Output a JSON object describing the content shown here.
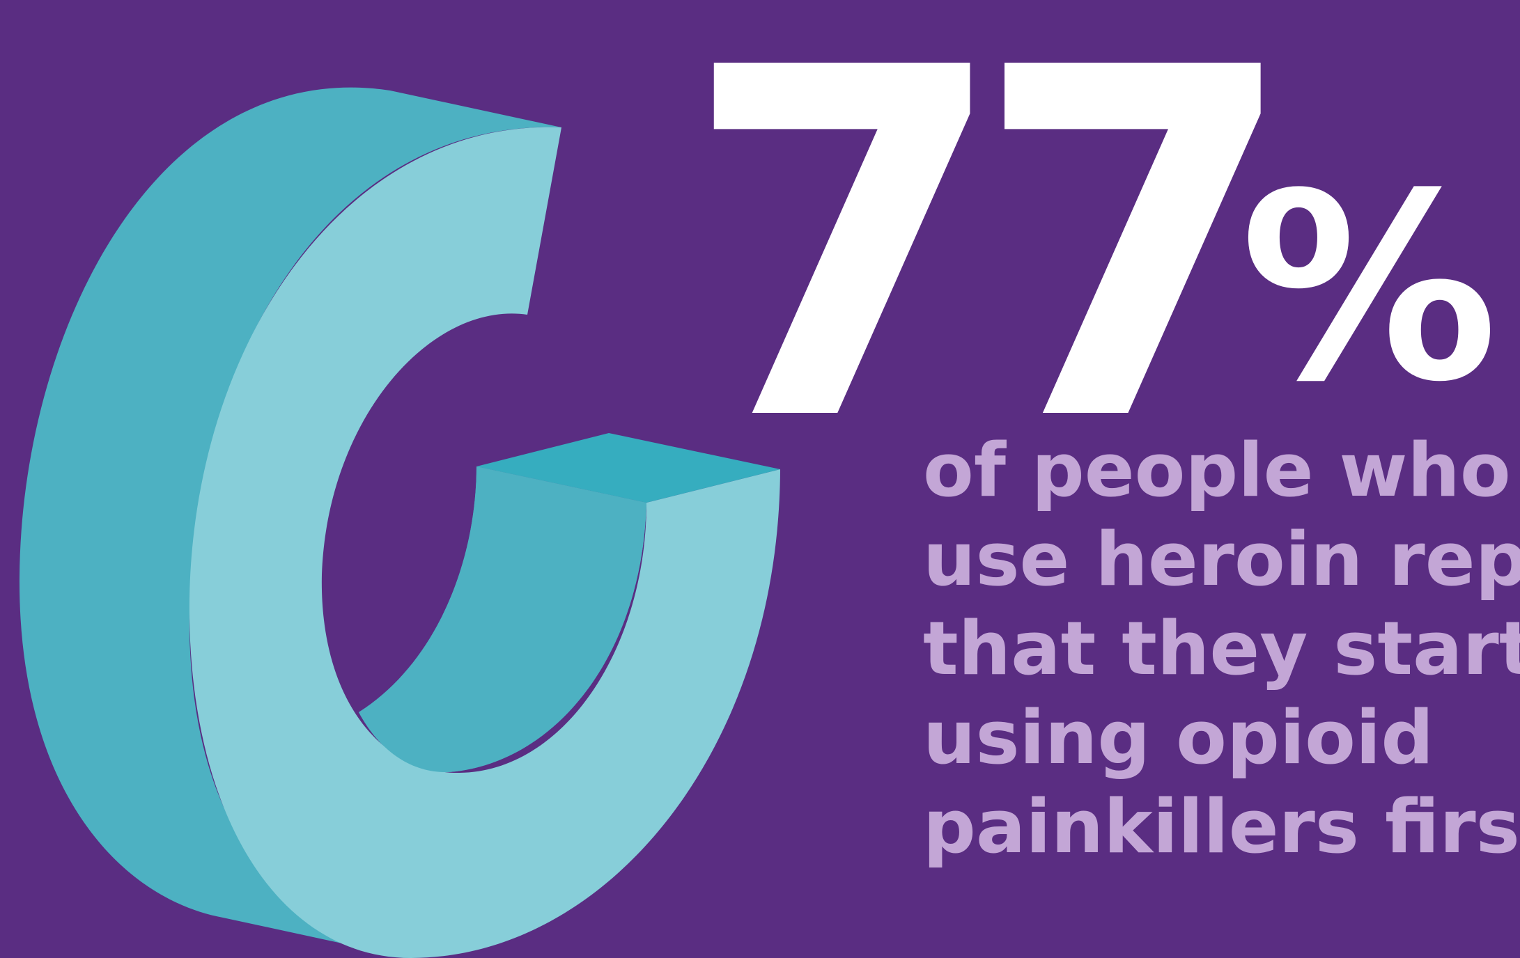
{
  "colors": {
    "background": "#5a2d82",
    "ring_top_face": "#87ced9",
    "ring_side_face": "#4db1c2",
    "ring_cut_face": "#36adbf",
    "stat_text": "#ffffff",
    "caption_text": "#c3a6d6"
  },
  "stat": {
    "number": "77",
    "unit": "%"
  },
  "caption": {
    "lines": [
      "of people who",
      "use heroin report",
      "that they started",
      "using opioid",
      "painkillers first."
    ]
  },
  "chart_data": {
    "type": "pie",
    "categories": [
      ""
    ],
    "values": [
      77
    ],
    "value_unit": "%",
    "max": 100
  }
}
